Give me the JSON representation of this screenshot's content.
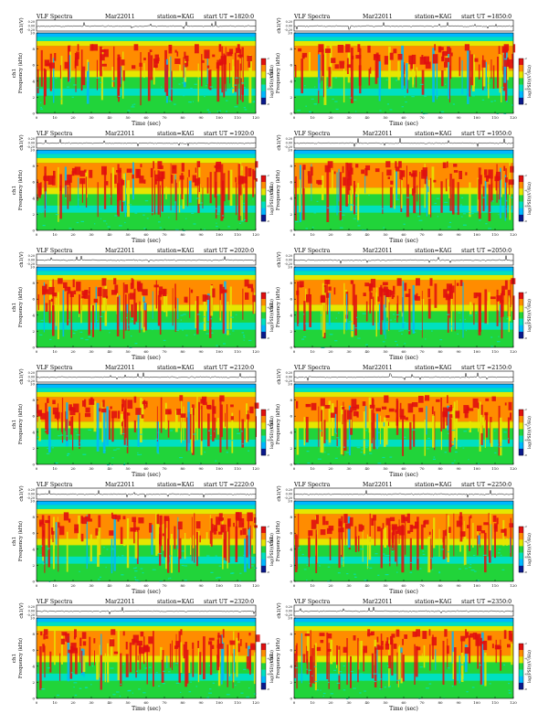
{
  "figure": {
    "header_title": "VLF Spectra",
    "date": "Mar22011",
    "station_prefix": "station=",
    "station": "KAG",
    "start_prefix": "start UT =",
    "amp_axis_label": "ch1(V)",
    "amp_ticks": [
      "0.20",
      "0.00",
      "-0.20"
    ],
    "spec_axis_label": "Frequency (kHz)",
    "spec_channel_label": "ch1",
    "freq_ticks": [
      "0",
      "2",
      "4",
      "6",
      "8",
      "10"
    ],
    "time_ticks": [
      "0",
      "10",
      "20",
      "30",
      "40",
      "50",
      "60",
      "70",
      "80",
      "90",
      "100",
      "110",
      "120"
    ],
    "time_label": "Time (sec)",
    "colorbar_label": "log(PSD)(V²/Hz)",
    "colorbar_ticks": [
      "-2",
      "-4",
      "-6",
      "-8"
    ]
  },
  "chart_data": [
    {
      "type": "heatmap",
      "title": "VLF Spectra  Mar22011  station=KAG  start UT =1820:0",
      "start_ut": "1820:0",
      "xlabel": "Time (sec)",
      "ylabel": "Frequency (kHz)",
      "xlim": [
        0,
        120
      ],
      "ylim": [
        0,
        10
      ],
      "colorbar_label": "log(PSD)(V²/Hz)",
      "colorbar_range": [
        -8,
        -2
      ],
      "colors": [
        "#0a1a8c",
        "#00b7ff",
        "#00e0c0",
        "#21d43a",
        "#e6e600",
        "#ff8c00",
        "#e01010"
      ]
    },
    {
      "type": "heatmap",
      "title": "VLF Spectra  Mar22011  station=KAG  start UT =1850:0",
      "start_ut": "1850:0",
      "xlabel": "Time (sec)",
      "ylabel": "Frequency (kHz)",
      "xlim": [
        0,
        120
      ],
      "ylim": [
        0,
        10
      ],
      "colorbar_label": "log(PSD)(V²/Hz)",
      "colorbar_range": [
        -8,
        -2
      ],
      "colors": [
        "#0a1a8c",
        "#00b7ff",
        "#00e0c0",
        "#21d43a",
        "#e6e600",
        "#ff8c00",
        "#e01010"
      ]
    },
    {
      "type": "heatmap",
      "title": "VLF Spectra  Mar22011  station=KAG  start UT =1920:0",
      "start_ut": "1920:0",
      "xlabel": "Time (sec)",
      "ylabel": "Frequency (kHz)",
      "xlim": [
        0,
        120
      ],
      "ylim": [
        0,
        10
      ],
      "colorbar_label": "log(PSD)(V²/Hz)",
      "colorbar_range": [
        -8,
        -2
      ],
      "colors": [
        "#0a1a8c",
        "#00b7ff",
        "#00e0c0",
        "#21d43a",
        "#e6e600",
        "#ff8c00",
        "#e01010"
      ]
    },
    {
      "type": "heatmap",
      "title": "VLF Spectra  Mar22011  station=KAG  start UT =1950:0",
      "start_ut": "1950:0",
      "xlabel": "Time (sec)",
      "ylabel": "Frequency (kHz)",
      "xlim": [
        0,
        120
      ],
      "ylim": [
        0,
        10
      ],
      "colorbar_label": "log(PSD)(V²/Hz)",
      "colorbar_range": [
        -8,
        -2
      ],
      "colors": [
        "#0a1a8c",
        "#00b7ff",
        "#00e0c0",
        "#21d43a",
        "#e6e600",
        "#ff8c00",
        "#e01010"
      ]
    },
    {
      "type": "heatmap",
      "title": "VLF Spectra  Mar22011  station=KAG  start UT =2020:0",
      "start_ut": "2020:0",
      "xlabel": "Time (sec)",
      "ylabel": "Frequency (kHz)",
      "xlim": [
        0,
        120
      ],
      "ylim": [
        0,
        10
      ],
      "colorbar_label": "log(PSD)(V²/Hz)",
      "colorbar_range": [
        -8,
        -2
      ],
      "colors": [
        "#0a1a8c",
        "#00b7ff",
        "#00e0c0",
        "#21d43a",
        "#e6e600",
        "#ff8c00",
        "#e01010"
      ]
    },
    {
      "type": "heatmap",
      "title": "VLF Spectra  Mar22011  station=KAG  start UT =2050:0",
      "start_ut": "2050:0",
      "xlabel": "Time (sec)",
      "ylabel": "Frequency (kHz)",
      "xlim": [
        0,
        120
      ],
      "ylim": [
        0,
        10
      ],
      "colorbar_label": "log(PSD)(V²/Hz)",
      "colorbar_range": [
        -8,
        -2
      ],
      "colors": [
        "#0a1a8c",
        "#00b7ff",
        "#00e0c0",
        "#21d43a",
        "#e6e600",
        "#ff8c00",
        "#e01010"
      ]
    },
    {
      "type": "heatmap",
      "title": "VLF Spectra  Mar22011  station=KAG  start UT =2120:0",
      "start_ut": "2120:0",
      "xlabel": "Time (sec)",
      "ylabel": "Frequency (kHz)",
      "xlim": [
        0,
        120
      ],
      "ylim": [
        0,
        10
      ],
      "colorbar_label": "log(PSD)(V²/Hz)",
      "colorbar_range": [
        -8,
        -2
      ],
      "colors": [
        "#0a1a8c",
        "#00b7ff",
        "#00e0c0",
        "#21d43a",
        "#e6e600",
        "#ff8c00",
        "#e01010"
      ]
    },
    {
      "type": "heatmap",
      "title": "VLF Spectra  Mar22011  station=KAG  start UT =2150:0",
      "start_ut": "2150:0",
      "xlabel": "Time (sec)",
      "ylabel": "Frequency (kHz)",
      "xlim": [
        0,
        120
      ],
      "ylim": [
        0,
        10
      ],
      "colorbar_label": "log(PSD)(V²/Hz)",
      "colorbar_range": [
        -8,
        -2
      ],
      "colors": [
        "#0a1a8c",
        "#00b7ff",
        "#00e0c0",
        "#21d43a",
        "#e6e600",
        "#ff8c00",
        "#e01010"
      ]
    },
    {
      "type": "heatmap",
      "title": "VLF Spectra  Mar22011  station=KAG  start UT =2220:0",
      "start_ut": "2220:0",
      "xlabel": "Time (sec)",
      "ylabel": "Frequency (kHz)",
      "xlim": [
        0,
        120
      ],
      "ylim": [
        0,
        10
      ],
      "colorbar_label": "log(PSD)(V²/Hz)",
      "colorbar_range": [
        -8,
        -2
      ],
      "colors": [
        "#0a1a8c",
        "#00b7ff",
        "#00e0c0",
        "#21d43a",
        "#e6e600",
        "#ff8c00",
        "#e01010"
      ]
    },
    {
      "type": "heatmap",
      "title": "VLF Spectra  Mar22011  station=KAG  start UT =2250:0",
      "start_ut": "2250:0",
      "xlabel": "Time (sec)",
      "ylabel": "Frequency (kHz)",
      "xlim": [
        0,
        120
      ],
      "ylim": [
        0,
        10
      ],
      "colorbar_label": "log(PSD)(V²/Hz)",
      "colorbar_range": [
        -8,
        -2
      ],
      "colors": [
        "#0a1a8c",
        "#00b7ff",
        "#00e0c0",
        "#21d43a",
        "#e6e600",
        "#ff8c00",
        "#e01010"
      ]
    },
    {
      "type": "heatmap",
      "title": "VLF Spectra  Mar22011  station=KAG  start UT =2320:0",
      "start_ut": "2320:0",
      "xlabel": "Time (sec)",
      "ylabel": "Frequency (kHz)",
      "xlim": [
        0,
        120
      ],
      "ylim": [
        0,
        10
      ],
      "colorbar_label": "log(PSD)(V²/Hz)",
      "colorbar_range": [
        -8,
        -2
      ],
      "colors": [
        "#0a1a8c",
        "#00b7ff",
        "#00e0c0",
        "#21d43a",
        "#e6e600",
        "#ff8c00",
        "#e01010"
      ]
    },
    {
      "type": "heatmap",
      "title": "VLF Spectra  Mar22011  station=KAG  start UT =2350:0",
      "start_ut": "2350:0",
      "xlabel": "Time (sec)",
      "ylabel": "Frequency (kHz)",
      "xlim": [
        0,
        120
      ],
      "ylim": [
        0,
        10
      ],
      "colorbar_label": "log(PSD)(V²/Hz)",
      "colorbar_range": [
        -8,
        -2
      ],
      "colors": [
        "#0a1a8c",
        "#00b7ff",
        "#00e0c0",
        "#21d43a",
        "#e6e600",
        "#ff8c00",
        "#e01010"
      ]
    }
  ]
}
